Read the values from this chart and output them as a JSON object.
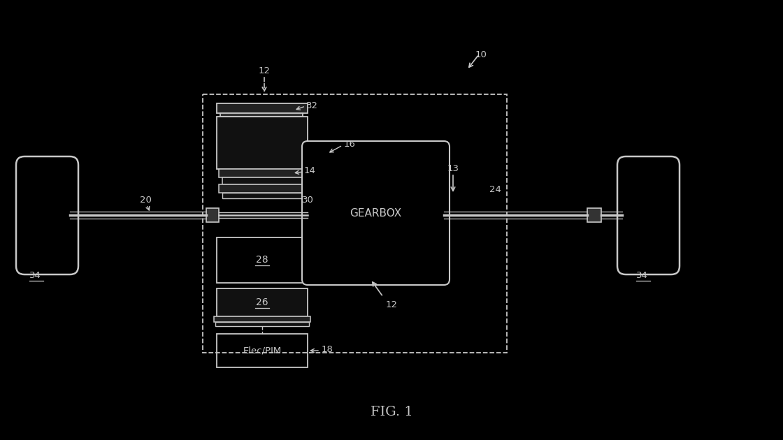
{
  "bg_color": "#000000",
  "lc": "#c8c8c8",
  "tc": "#c8c8c8",
  "fig_width": 11.2,
  "fig_height": 6.3,
  "title": "FIG. 1",
  "gearbox_label": "GEARBOX",
  "elecpim_label": "Elec/PIM"
}
